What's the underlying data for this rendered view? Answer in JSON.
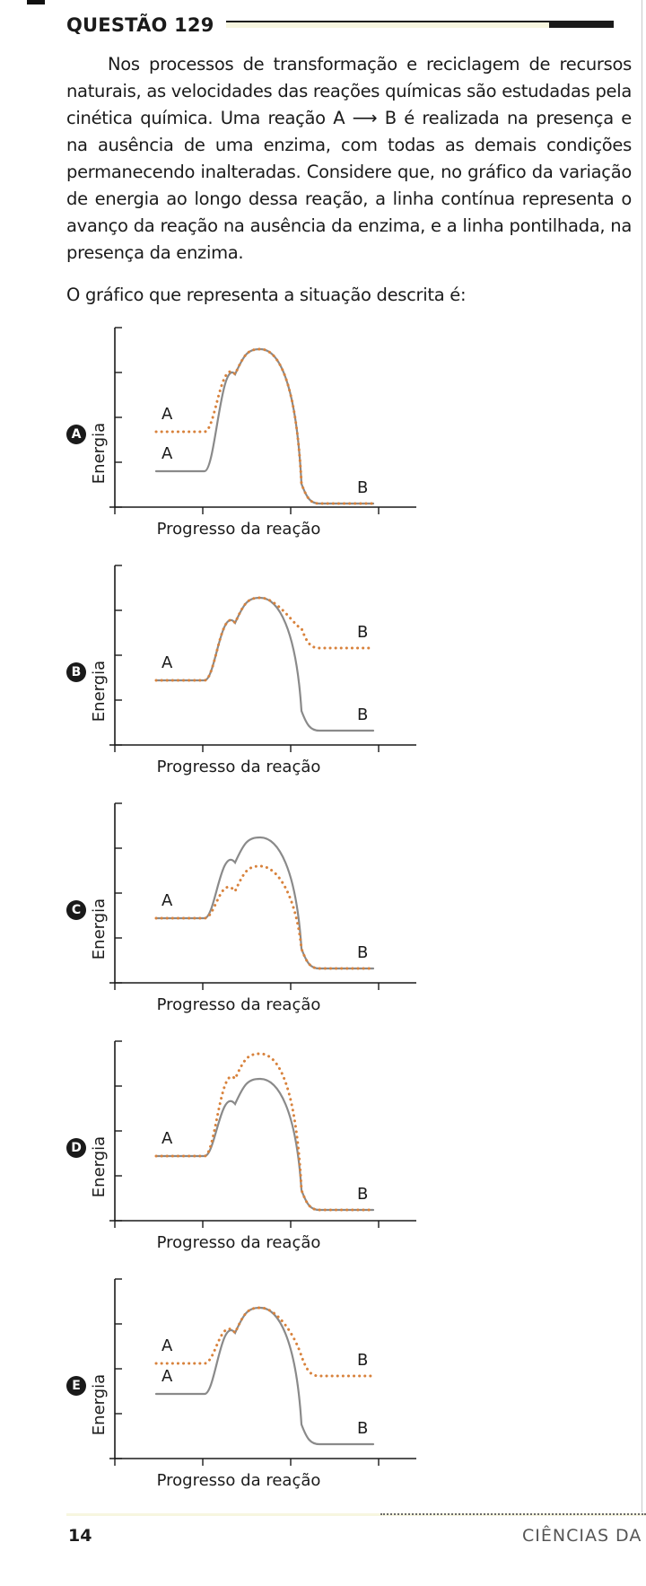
{
  "question": {
    "title": "QUESTÃO 129",
    "statement": "Nos processos de transformação e reciclagem de recursos naturais, as velocidades das reações químicas são estudadas pela cinética química. Uma reação A ⟶ B é realizada na presença e na ausência de uma enzima, com todas as demais condições permanecendo inalteradas. Considere que, no gráfico da variação de energia ao longo dessa reação, a linha contínua representa o avanço da reação na ausência da enzima, e a linha pontilhada, na presença da enzima.",
    "prompt": "O gráfico que representa a situação descrita é:"
  },
  "axis": {
    "ylabel": "Energia",
    "xlabel": "Progresso da reação"
  },
  "colors": {
    "solid": "#8a8a8a",
    "dotted": "#d8823c",
    "axis": "#1a1a1a",
    "badge": "#1a1a1a"
  },
  "chart_data": [
    {
      "type": "line",
      "letter": "A",
      "series": [
        {
          "style": "solid",
          "start_label": "A",
          "end_label": "B",
          "start": 2,
          "peak": 8.8,
          "end": 0.2
        },
        {
          "style": "dotted",
          "start_label": "A",
          "end_label": "",
          "start": 4.2,
          "peak": 8.8,
          "end": 0.2
        }
      ]
    },
    {
      "type": "line",
      "letter": "B",
      "series": [
        {
          "style": "solid",
          "start_label": "A",
          "end_label": "B",
          "start": 3.6,
          "peak": 8.2,
          "end": 0.8
        },
        {
          "style": "dotted",
          "start_label": "",
          "end_label": "B",
          "start": 3.6,
          "peak": 8.2,
          "end": 5.4
        }
      ]
    },
    {
      "type": "line",
      "letter": "C",
      "series": [
        {
          "style": "solid",
          "start_label": "A",
          "end_label": "B",
          "start": 3.6,
          "peak": 8.1,
          "end": 0.8
        },
        {
          "style": "dotted",
          "start_label": "",
          "end_label": "",
          "start": 3.6,
          "peak": 6.5,
          "end": 0.8
        }
      ]
    },
    {
      "type": "line",
      "letter": "D",
      "series": [
        {
          "style": "solid",
          "start_label": "A",
          "end_label": "B",
          "start": 3.6,
          "peak": 7.9,
          "end": 0.6
        },
        {
          "style": "dotted",
          "start_label": "",
          "end_label": "",
          "start": 3.6,
          "peak": 9.3,
          "end": 0.6
        }
      ]
    },
    {
      "type": "line",
      "letter": "E",
      "series": [
        {
          "style": "solid",
          "start_label": "A",
          "end_label": "B",
          "start": 3.6,
          "peak": 8.4,
          "end": 0.8
        },
        {
          "style": "dotted",
          "start_label": "A",
          "end_label": "B",
          "start": 5.3,
          "peak": 8.4,
          "end": 4.6
        }
      ]
    }
  ],
  "footer": {
    "page": "14",
    "section": "CIÊNCIAS DA N"
  }
}
